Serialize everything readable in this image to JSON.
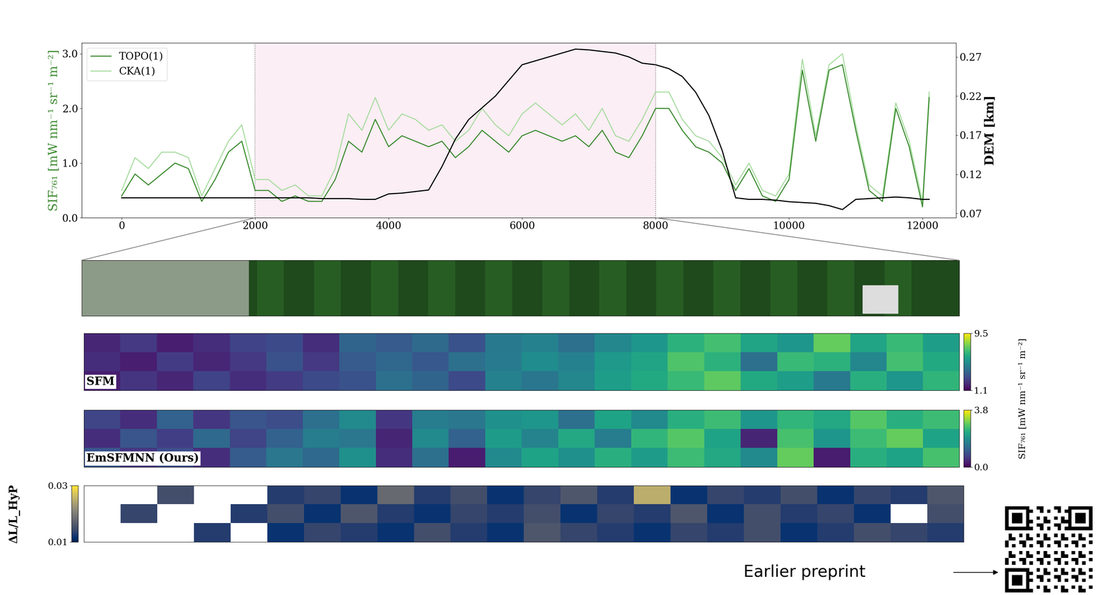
{
  "chart_data": [
    {
      "type": "line",
      "x": [
        0,
        200,
        400,
        600,
        800,
        1000,
        1200,
        1400,
        1600,
        1800,
        2000,
        2200,
        2400,
        2600,
        2800,
        3000,
        3200,
        3400,
        3600,
        3800,
        4000,
        4200,
        4400,
        4600,
        4800,
        5000,
        5200,
        5400,
        5600,
        5800,
        6000,
        6200,
        6400,
        6600,
        6800,
        7000,
        7200,
        7400,
        7600,
        7800,
        8000,
        8200,
        8400,
        8600,
        8800,
        9000,
        9200,
        9400,
        9600,
        9800,
        10000,
        10200,
        10400,
        10600,
        10800,
        11000,
        11200,
        11400,
        11600,
        11800,
        12000,
        12100
      ],
      "series": [
        {
          "name": "TOPO(1)",
          "color": "#3a8a2e",
          "values": [
            0.4,
            0.8,
            0.6,
            0.8,
            1.0,
            0.9,
            0.3,
            0.7,
            1.2,
            1.4,
            0.5,
            0.5,
            0.3,
            0.4,
            0.3,
            0.3,
            0.7,
            1.4,
            1.2,
            1.8,
            1.3,
            1.5,
            1.4,
            1.3,
            1.4,
            1.1,
            1.3,
            1.6,
            1.4,
            1.2,
            1.5,
            1.6,
            1.5,
            1.4,
            1.5,
            1.3,
            1.6,
            1.2,
            1.1,
            1.5,
            2.0,
            2.0,
            1.6,
            1.3,
            1.2,
            1.0,
            0.5,
            0.9,
            0.4,
            0.3,
            0.7,
            2.7,
            1.4,
            2.7,
            2.8,
            1.6,
            0.5,
            0.3,
            2.0,
            1.3,
            0.2,
            2.2
          ]
        },
        {
          "name": "CKA(1)",
          "color": "#a8dca0",
          "values": [
            0.5,
            1.1,
            0.9,
            1.2,
            1.2,
            1.1,
            0.4,
            0.9,
            1.4,
            1.7,
            0.7,
            0.7,
            0.5,
            0.6,
            0.4,
            0.4,
            0.9,
            1.9,
            1.6,
            2.2,
            1.6,
            1.9,
            1.8,
            1.6,
            1.7,
            1.4,
            1.6,
            2.0,
            1.7,
            1.5,
            1.9,
            2.1,
            1.9,
            1.7,
            1.9,
            1.6,
            2.0,
            1.5,
            1.4,
            1.8,
            2.3,
            2.3,
            1.8,
            1.5,
            1.4,
            1.1,
            0.6,
            1.0,
            0.5,
            0.4,
            0.8,
            2.9,
            1.5,
            2.8,
            3.0,
            1.7,
            0.6,
            0.4,
            2.1,
            1.4,
            0.3,
            2.3
          ]
        },
        {
          "name": "DEM",
          "color": "#000000",
          "axis": "y2",
          "values": [
            0.09,
            0.09,
            0.09,
            0.09,
            0.09,
            0.09,
            0.09,
            0.09,
            0.09,
            0.09,
            0.09,
            0.09,
            0.09,
            0.09,
            0.09,
            0.089,
            0.089,
            0.089,
            0.088,
            0.088,
            0.095,
            0.096,
            0.098,
            0.1,
            0.13,
            0.165,
            0.19,
            0.205,
            0.22,
            0.24,
            0.26,
            0.265,
            0.27,
            0.275,
            0.28,
            0.279,
            0.277,
            0.275,
            0.27,
            0.262,
            0.26,
            0.255,
            0.245,
            0.225,
            0.195,
            0.15,
            0.09,
            0.088,
            0.088,
            0.087,
            0.085,
            0.084,
            0.083,
            0.08,
            0.075,
            0.088,
            0.089,
            0.09,
            0.091,
            0.09,
            0.088,
            0.088
          ]
        }
      ],
      "span": [
        2000,
        8000
      ],
      "xlim": [
        -600,
        12500
      ],
      "xticks": [
        0,
        2000,
        4000,
        6000,
        8000,
        10000,
        12000
      ],
      "ylim": [
        0,
        3.2
      ],
      "yticks": [
        {
          "value": 0,
          "label": "0.0"
        },
        {
          "value": 1,
          "label": "1.0"
        },
        {
          "value": 2,
          "label": "2.0"
        },
        {
          "value": 3,
          "label": "3.0"
        }
      ],
      "y2lim": [
        0.0645,
        0.288
      ],
      "y2ticks": [
        0.07,
        0.12,
        0.17,
        0.22,
        0.27
      ],
      "y_label": "SIF₇₆₁ [mW nm⁻¹ sr⁻¹ m⁻²]",
      "y2_label": "DEM [km]",
      "legend": "upper left"
    },
    {
      "type": "heatmap",
      "title": "SFM",
      "tick_labels": false,
      "cells": [
        [
          2.0,
          2.5,
          1.8,
          2.2,
          2.8,
          3.0,
          2.2,
          3.8,
          3.5,
          4.0,
          3.2,
          4.5,
          4.8,
          4.2,
          5.0,
          5.5,
          6.5,
          7.0,
          6.0,
          5.5,
          7.5,
          6.0,
          6.8,
          5.8
        ],
        [
          2.2,
          1.8,
          2.6,
          2.0,
          2.5,
          3.2,
          2.5,
          3.5,
          3.9,
          3.4,
          4.2,
          4.6,
          5.2,
          4.8,
          5.6,
          6.0,
          7.2,
          6.5,
          4.2,
          6.8,
          6.5,
          5.0,
          7.0,
          6.2
        ],
        [
          1.8,
          2.4,
          2.0,
          2.8,
          2.2,
          2.6,
          3.0,
          3.2,
          4.2,
          3.8,
          3.0,
          4.8,
          4.4,
          5.0,
          5.8,
          6.2,
          6.8,
          7.4,
          6.2,
          5.8,
          4.5,
          6.4,
          5.5,
          6.6
        ]
      ],
      "colorbar_range": [
        1.1,
        9.5
      ],
      "colorbar_ticks": [
        1.1,
        9.5
      ],
      "colorbar_label": "SIF₇₆₁ [mW nm⁻¹ sr⁻¹ m⁻²]"
    },
    {
      "type": "heatmap",
      "title": "EmSFMNN (Ours)",
      "tick_labels": false,
      "cells": [
        [
          0.8,
          0.5,
          1.2,
          0.6,
          1.0,
          0.9,
          1.4,
          1.8,
          0.6,
          1.6,
          1.5,
          1.9,
          2.0,
          1.4,
          2.2,
          1.8,
          2.4,
          2.6,
          2.0,
          2.5,
          2.3,
          2.8,
          2.4,
          2.6
        ],
        [
          0.5,
          1.0,
          0.7,
          1.3,
          0.8,
          1.2,
          1.6,
          1.5,
          0.4,
          1.8,
          1.2,
          2.1,
          1.7,
          2.3,
          1.6,
          2.5,
          2.8,
          2.2,
          0.4,
          2.7,
          2.0,
          2.6,
          2.9,
          2.2
        ],
        [
          1.0,
          0.6,
          0.9,
          0.5,
          1.1,
          1.5,
          1.3,
          1.9,
          0.5,
          1.4,
          0.3,
          1.8,
          2.2,
          1.9,
          2.4,
          2.1,
          2.6,
          2.3,
          1.8,
          2.9,
          0.3,
          2.4,
          2.2,
          2.7
        ]
      ],
      "colorbar_range": [
        0.0,
        3.8
      ],
      "colorbar_ticks": [
        {
          "value": 0,
          "label": "0.0"
        },
        3.8
      ]
    },
    {
      "type": "heatmap",
      "tick_labels": false,
      "cells": [
        [
          null,
          null,
          0.015,
          null,
          null,
          0.013,
          0.014,
          0.012,
          0.018,
          0.013,
          0.015,
          0.012,
          0.014,
          0.016,
          0.013,
          0.025,
          0.012,
          0.014,
          0.013,
          0.015,
          0.012,
          0.014,
          0.013,
          0.016
        ],
        [
          null,
          0.014,
          null,
          null,
          0.013,
          0.015,
          0.012,
          0.016,
          0.013,
          0.012,
          0.014,
          0.013,
          0.015,
          0.012,
          0.014,
          0.013,
          0.016,
          0.012,
          0.015,
          0.013,
          0.014,
          0.012,
          null,
          0.015
        ],
        [
          null,
          null,
          null,
          0.013,
          null,
          0.012,
          0.014,
          0.013,
          0.012,
          0.015,
          0.013,
          0.012,
          0.016,
          0.014,
          0.013,
          0.012,
          0.014,
          0.013,
          0.015,
          0.012,
          0.013,
          0.015,
          0.014,
          0.013
        ]
      ],
      "colorbar_range": [
        0.01,
        0.03
      ],
      "colorbar_ticks": [
        0.01,
        0.03
      ],
      "colorbar_label": "ΔL/L_HyP",
      "annotation": "Earlier preprint"
    }
  ]
}
